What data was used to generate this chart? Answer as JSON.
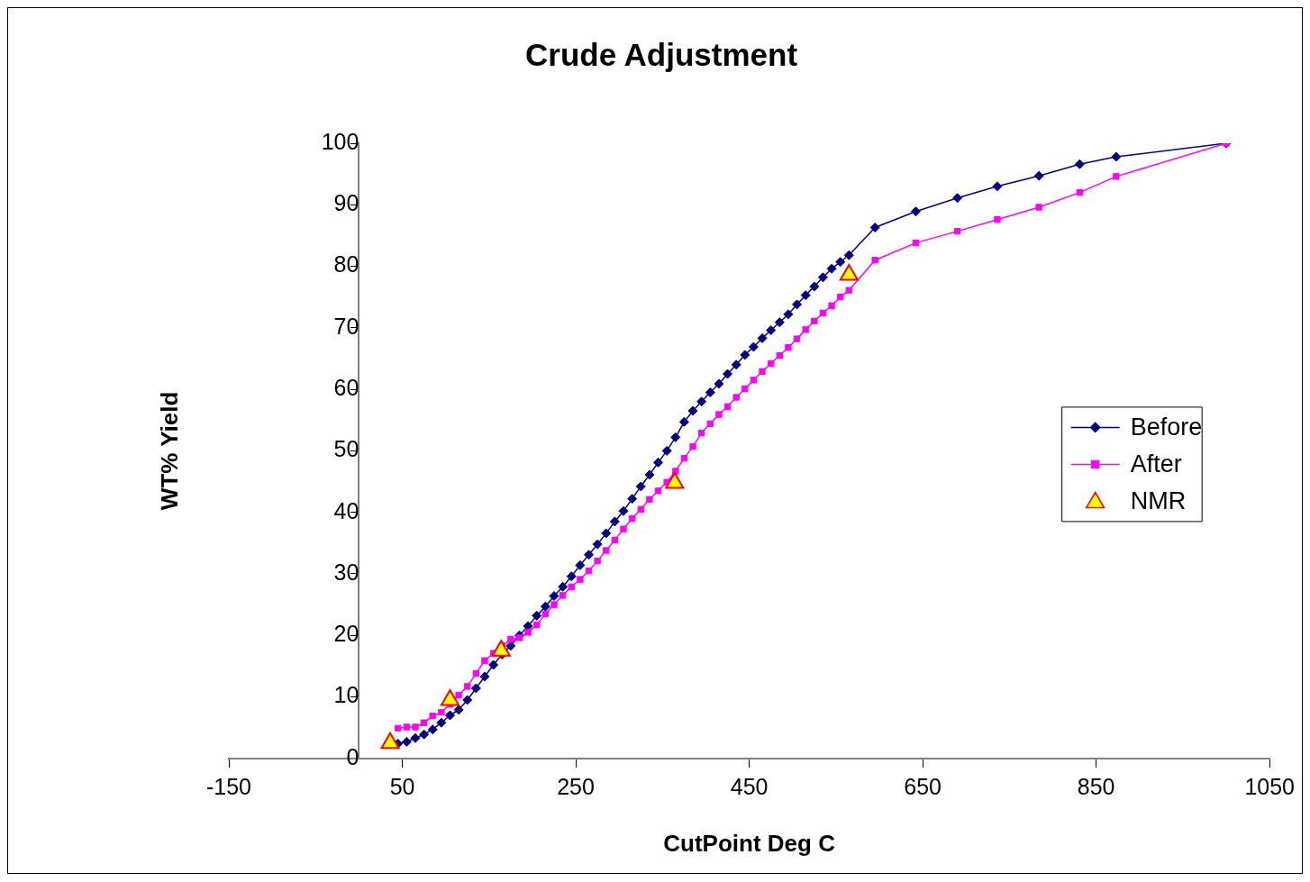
{
  "chart_data": {
    "type": "line",
    "title": "Crude Adjustment",
    "xlabel": "CutPoint Deg C",
    "ylabel": "WT% Yield",
    "xlim": [
      -150,
      1050
    ],
    "xticks": [
      -150,
      50,
      250,
      450,
      650,
      850,
      1050
    ],
    "ylim": [
      0,
      100
    ],
    "yticks": [
      0,
      10,
      20,
      30,
      40,
      50,
      60,
      70,
      80,
      90,
      100
    ],
    "grid": false,
    "legend": "right",
    "series": [
      {
        "name": "Before",
        "color": "#000080",
        "marker": "diamond",
        "line_style": "solid",
        "x": [
          45,
          55,
          65,
          75,
          85,
          95,
          105,
          115,
          125,
          135,
          145,
          155,
          165,
          175,
          185,
          195,
          205,
          215,
          225,
          235,
          245,
          255,
          265,
          275,
          285,
          295,
          305,
          315,
          325,
          335,
          345,
          355,
          365,
          375,
          385,
          395,
          405,
          415,
          425,
          435,
          445,
          455,
          465,
          475,
          485,
          495,
          505,
          515,
          525,
          535,
          545,
          555,
          565,
          595,
          642,
          690,
          736,
          784,
          831,
          873,
          1000
        ],
        "values": [
          2.4,
          2.7,
          3.3,
          3.9,
          4.7,
          5.8,
          7.0,
          7.9,
          9.5,
          11.4,
          13.3,
          15.2,
          16.9,
          18.3,
          20.0,
          21.5,
          23.2,
          24.7,
          26.4,
          27.9,
          29.6,
          31.4,
          33.1,
          34.8,
          36.6,
          38.5,
          40.2,
          42.2,
          44.2,
          46.1,
          48.1,
          50.0,
          52.2,
          54.7,
          56.5,
          58.0,
          59.5,
          60.9,
          62.5,
          64.0,
          65.6,
          66.9,
          68.3,
          69.6,
          70.9,
          72.2,
          73.8,
          75.3,
          76.7,
          78.2,
          79.6,
          80.7,
          81.8,
          86.3,
          88.9,
          91.1,
          93.0,
          94.7,
          96.6,
          97.8,
          100
        ]
      },
      {
        "name": "After",
        "color": "#ff00ff",
        "marker": "square",
        "line_style": "solid",
        "x": [
          45,
          55,
          65,
          75,
          85,
          95,
          105,
          115,
          125,
          135,
          145,
          155,
          165,
          175,
          185,
          195,
          205,
          215,
          225,
          235,
          245,
          255,
          265,
          275,
          285,
          295,
          305,
          315,
          325,
          335,
          345,
          355,
          365,
          375,
          385,
          395,
          405,
          415,
          425,
          435,
          445,
          455,
          465,
          475,
          485,
          495,
          505,
          515,
          525,
          535,
          545,
          555,
          565,
          595,
          642,
          690,
          736,
          784,
          831,
          873,
          1000
        ],
        "values": [
          4.9,
          5.1,
          5.1,
          5.8,
          6.9,
          7.5,
          8.8,
          10.3,
          11.7,
          13.8,
          15.9,
          17.1,
          18.3,
          19.4,
          19.6,
          20.5,
          21.7,
          23.5,
          25.0,
          26.5,
          27.9,
          29.1,
          30.5,
          32.1,
          33.8,
          35.5,
          37.3,
          39.0,
          40.5,
          42.1,
          43.5,
          44.9,
          46.7,
          48.8,
          50.7,
          52.9,
          54.4,
          55.9,
          57.2,
          58.7,
          60.1,
          61.5,
          62.9,
          64.2,
          65.5,
          66.8,
          68.2,
          69.7,
          71.1,
          72.4,
          73.6,
          75.0,
          76.1,
          81.0,
          83.8,
          85.7,
          87.6,
          89.6,
          92.0,
          94.6,
          100
        ]
      },
      {
        "name": "NMR",
        "type": "scatter",
        "color": "#ffff00",
        "marker": "triangle",
        "x": [
          36,
          105,
          164,
          364,
          565
        ],
        "values": [
          2.5,
          9.5,
          17.5,
          44.8,
          78.6
        ]
      }
    ]
  }
}
